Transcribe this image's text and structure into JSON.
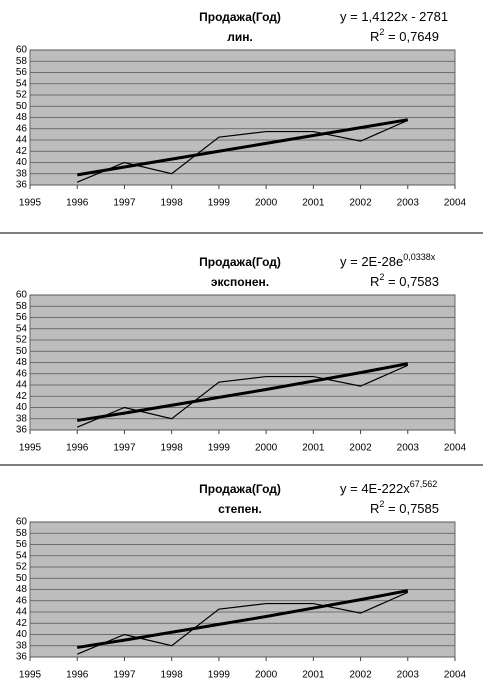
{
  "chart_data": [
    {
      "type": "line",
      "title": "Продажа(Год)",
      "subtitle": "лин.",
      "annotations": [
        [
          "y = 1,4122x - 2781"
        ],
        [
          "R",
          "2",
          " = 0,7649"
        ]
      ],
      "x": [
        1996,
        1997,
        1998,
        1999,
        2000,
        2001,
        2002,
        2003
      ],
      "series": [
        {
          "color": "#000000",
          "line_width": 1.2,
          "values": [
            36.5,
            40,
            38,
            44.5,
            45.5,
            45.5,
            43.8,
            47.5
          ]
        },
        {
          "color": "#000000",
          "line_width": 3,
          "values": [
            37.8,
            39.2,
            40.6,
            42,
            43.4,
            44.8,
            46.2,
            47.6
          ]
        }
      ],
      "xlim": [
        1995,
        2004
      ],
      "xticks": [
        1995,
        1996,
        1997,
        1998,
        1999,
        2000,
        2001,
        2002,
        2003,
        2004
      ],
      "ylim": [
        36,
        60
      ],
      "yticks": [
        36,
        38,
        40,
        42,
        44,
        46,
        48,
        50,
        52,
        54,
        56,
        58,
        60
      ],
      "grid": true,
      "plot_color": "#bdbdbd"
    },
    {
      "type": "line",
      "title": "Продажа(Год)",
      "subtitle": "экспонен.",
      "annotations": [
        [
          "y = 2E-28e",
          "0,0338x"
        ],
        [
          "R",
          "2",
          " = 0,7583"
        ]
      ],
      "x": [
        1996,
        1997,
        1998,
        1999,
        2000,
        2001,
        2002,
        2003
      ],
      "series": [
        {
          "color": "#000000",
          "line_width": 1.2,
          "values": [
            36.5,
            40,
            38,
            44.5,
            45.5,
            45.5,
            43.8,
            47.5
          ]
        },
        {
          "color": "#000000",
          "line_width": 3,
          "values": [
            37.7,
            39,
            40.4,
            41.8,
            43.2,
            44.7,
            46.2,
            47.8
          ]
        }
      ],
      "xlim": [
        1995,
        2004
      ],
      "xticks": [
        1995,
        1996,
        1997,
        1998,
        1999,
        2000,
        2001,
        2002,
        2003,
        2004
      ],
      "ylim": [
        36,
        60
      ],
      "yticks": [
        36,
        38,
        40,
        42,
        44,
        46,
        48,
        50,
        52,
        54,
        56,
        58,
        60
      ],
      "grid": true,
      "plot_color": "#bdbdbd"
    },
    {
      "type": "line",
      "title": "Продажа(Год)",
      "subtitle": "степен.",
      "annotations": [
        [
          "y = 4E-222x",
          "67,562"
        ],
        [
          "R",
          "2",
          " = 0,7585"
        ]
      ],
      "x": [
        1996,
        1997,
        1998,
        1999,
        2000,
        2001,
        2002,
        2003
      ],
      "series": [
        {
          "color": "#000000",
          "line_width": 1.2,
          "values": [
            36.5,
            40,
            38,
            44.5,
            45.5,
            45.5,
            43.8,
            47.5
          ]
        },
        {
          "color": "#000000",
          "line_width": 3,
          "values": [
            37.7,
            39,
            40.4,
            41.8,
            43.2,
            44.7,
            46.2,
            47.8
          ]
        }
      ],
      "xlim": [
        1995,
        2004
      ],
      "xticks": [
        1995,
        1996,
        1997,
        1998,
        1999,
        2000,
        2001,
        2002,
        2003,
        2004
      ],
      "ylim": [
        36,
        60
      ],
      "yticks": [
        36,
        38,
        40,
        42,
        44,
        46,
        48,
        50,
        52,
        54,
        56,
        58,
        60
      ],
      "grid": true,
      "plot_color": "#bdbdbd"
    }
  ]
}
